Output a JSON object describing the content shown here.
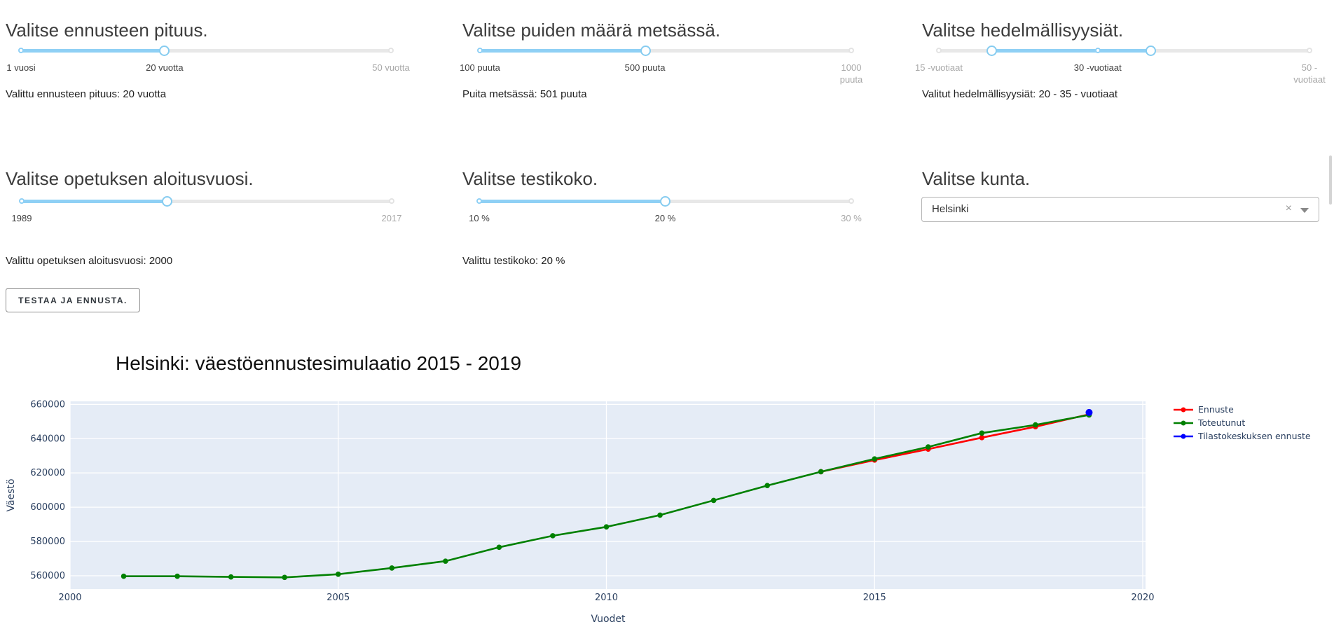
{
  "colors": {
    "slider_fill": "#8fd0f5",
    "slider_handle_border": "#86ccf0",
    "slider_rail": "#e8e8e8",
    "mark_active": "#404040",
    "mark_inactive": "#a8a8a8",
    "chart_axis_text": "#2a3f5f",
    "plot_background": "#e5ecf6",
    "grid": "#ffffff"
  },
  "controls": {
    "panels": [
      {
        "title": "Valitse ennusteen pituus.",
        "value_text": "Valittu ennusteen pituus: 20 vuotta"
      },
      {
        "title": "Valitse puiden määrä metsässä.",
        "value_text": "Puita metsässä: 501 puuta"
      },
      {
        "title": "Valitse hedelmällisyysiät.",
        "value_text": "Valitut hedelmällisyysiät: 20 - 35 - vuotiaat"
      },
      {
        "title": "Valitse opetuksen aloitusvuosi.",
        "value_text": "Valittu opetuksen aloitusvuosi: 2000"
      },
      {
        "title": "Valitse testikoko.",
        "value_text": "Valittu testikoko: 20 %"
      },
      {
        "title": "Valitse kunta."
      }
    ],
    "sliders": [
      {
        "name": "ennusteen-pituus",
        "handles": [
          0.388
        ],
        "fill": [
          0,
          0.388
        ],
        "dots": [
          {
            "f": 0,
            "active": true
          },
          {
            "f": 1,
            "active": false
          }
        ],
        "marks": [
          {
            "f": 0,
            "label": "1 vuosi",
            "active": true
          },
          {
            "f": 0.388,
            "label": "20 vuotta",
            "active": true
          },
          {
            "f": 1,
            "label": "50 vuotta",
            "active": false,
            "wrap": true
          }
        ]
      },
      {
        "name": "puiden-maara",
        "handles": [
          0.4456
        ],
        "fill": [
          0,
          0.4456
        ],
        "dots": [
          {
            "f": 0,
            "active": true
          },
          {
            "f": 1,
            "active": false
          }
        ],
        "marks": [
          {
            "f": 0,
            "label": "100 puuta",
            "active": true
          },
          {
            "f": 0.4444,
            "label": "500 puuta",
            "active": true
          },
          {
            "f": 1,
            "label": "1000 puuta",
            "active": false,
            "wrap": true
          }
        ]
      },
      {
        "name": "hedelmallisyysiat",
        "handles": [
          0.1429,
          0.5714
        ],
        "fill": [
          0.1429,
          0.5714
        ],
        "dots": [
          {
            "f": 0,
            "active": false
          },
          {
            "f": 0.4286,
            "active": true
          },
          {
            "f": 1,
            "active": false
          }
        ],
        "marks": [
          {
            "f": 0,
            "label": "15 -vuotiaat",
            "active": false
          },
          {
            "f": 0.4286,
            "label": "30 -vuotiaat",
            "active": true
          },
          {
            "f": 1,
            "label": "50 -vuotiaat",
            "active": false,
            "wrap": true
          }
        ]
      },
      {
        "name": "opetuksen-aloitusvuosi",
        "handles": [
          0.3929
        ],
        "fill": [
          0,
          0.3929
        ],
        "dots": [
          {
            "f": 0,
            "active": true
          },
          {
            "f": 1,
            "active": false
          }
        ],
        "marks": [
          {
            "f": 0,
            "label": "1989",
            "active": true
          },
          {
            "f": 1,
            "label": "2017",
            "active": false
          }
        ]
      },
      {
        "name": "testikoko",
        "handles": [
          0.5
        ],
        "fill": [
          0,
          0.5
        ],
        "dots": [
          {
            "f": 0,
            "active": true
          },
          {
            "f": 1,
            "active": false
          }
        ],
        "marks": [
          {
            "f": 0,
            "label": "10 %",
            "active": true
          },
          {
            "f": 0.5,
            "label": "20 %",
            "active": true
          },
          {
            "f": 1,
            "label": "30 %",
            "active": false,
            "wrap": true
          }
        ]
      }
    ],
    "dropdown": {
      "value": "Helsinki",
      "clear_icon": "×"
    },
    "button_label": "TESTAA JA ENNUSTA."
  },
  "chart_data": {
    "type": "line",
    "title": "Helsinki: väestöennustesimulaatio 2015 - 2019",
    "xlabel": "Vuodet",
    "ylabel": "Väestö",
    "x_ticks": [
      2000,
      2005,
      2010,
      2015,
      2020
    ],
    "y_ticks": [
      560000,
      580000,
      600000,
      620000,
      640000,
      660000
    ],
    "xlim": [
      2000,
      2020.1
    ],
    "ylim": [
      552200,
      661800
    ],
    "grid": true,
    "legend_position": "right",
    "series": [
      {
        "name": "Ennuste",
        "color": "#ff0000",
        "x": [
          2014,
          2015,
          2016,
          2017,
          2018,
          2019
        ],
        "y": [
          620715,
          627500,
          633900,
          640600,
          647000,
          654200
        ]
      },
      {
        "name": "Toteutunut",
        "color": "#008000",
        "x": [
          2001,
          2002,
          2003,
          2004,
          2005,
          2006,
          2007,
          2008,
          2009,
          2010,
          2011,
          2012,
          2013,
          2014,
          2015,
          2016,
          2017,
          2018,
          2019
        ],
        "y": [
          559716,
          559716,
          559330,
          559046,
          560905,
          564521,
          568531,
          576632,
          583350,
          588549,
          595384,
          603968,
          612664,
          620715,
          628208,
          635181,
          643272,
          648042,
          653835
        ]
      },
      {
        "name": "Tilastokeskuksen ennuste",
        "color": "#0000ff",
        "x": [
          2019
        ],
        "y": [
          655300
        ]
      }
    ]
  }
}
